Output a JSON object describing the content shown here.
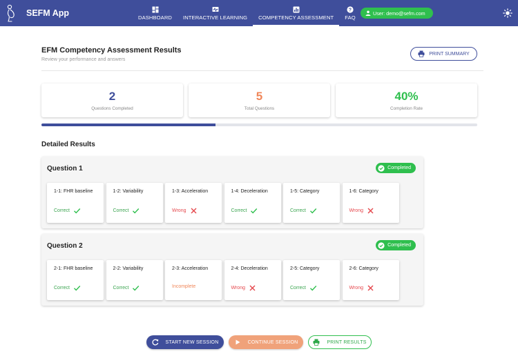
{
  "app": {
    "title": "SEFM App"
  },
  "nav": {
    "items": [
      {
        "label": "DASHBOARD",
        "icon": "dashboard-icon"
      },
      {
        "label": "INTERACTIVE LEARNING",
        "icon": "monitor-chart-icon"
      },
      {
        "label": "COMPETENCY ASSESSMENT",
        "icon": "assessment-icon",
        "active": true
      },
      {
        "label": "FAQ",
        "icon": "help-icon"
      }
    ],
    "user_label": "User: demo@sefm.com"
  },
  "header": {
    "title": "EFM Competency Assessment Results",
    "subtitle": "Review your performance and answers",
    "print_summary_label": "PRINT SUMMARY"
  },
  "stats": [
    {
      "value": "2",
      "label": "Questions Completed",
      "color": "#3f4e9b"
    },
    {
      "value": "5",
      "label": "Total Questions",
      "color": "#f0875a"
    },
    {
      "value": "40%",
      "label": "Completion Rate",
      "color": "#2fbf4e"
    }
  ],
  "progress": {
    "fraction": 0.4
  },
  "results": {
    "title": "Detailed Results",
    "questions": [
      {
        "title": "Question 1",
        "badge": "Completed",
        "answers": [
          {
            "label": "1-1: FHR baseline",
            "status": "Correct"
          },
          {
            "label": "1-2: Variability",
            "status": "Correct"
          },
          {
            "label": "1-3: Acceleration",
            "status": "Wrong"
          },
          {
            "label": "1-4: Deceleration",
            "status": "Correct"
          },
          {
            "label": "1-5: Category",
            "status": "Correct"
          },
          {
            "label": "1-6: Category",
            "status": "Wrong"
          }
        ]
      },
      {
        "title": "Question 2",
        "badge": "Completed",
        "answers": [
          {
            "label": "2-1: FHR baseline",
            "status": "Correct"
          },
          {
            "label": "2-2: Variability",
            "status": "Correct"
          },
          {
            "label": "2-3: Acceleration",
            "status": "Incomplete"
          },
          {
            "label": "2-4: Deceleration",
            "status": "Wrong"
          },
          {
            "label": "2-5: Category",
            "status": "Correct"
          },
          {
            "label": "2-6: Category",
            "status": "Wrong"
          }
        ]
      }
    ]
  },
  "actions": {
    "start_label": "START NEW SESSION",
    "continue_label": "CONTINUE SESSION",
    "print_label": "PRINT RESULTS"
  },
  "colors": {
    "primary": "#3f4e9b",
    "success": "#2fbf4e",
    "wrong": "#e5484d",
    "incomplete": "#f0875a"
  }
}
